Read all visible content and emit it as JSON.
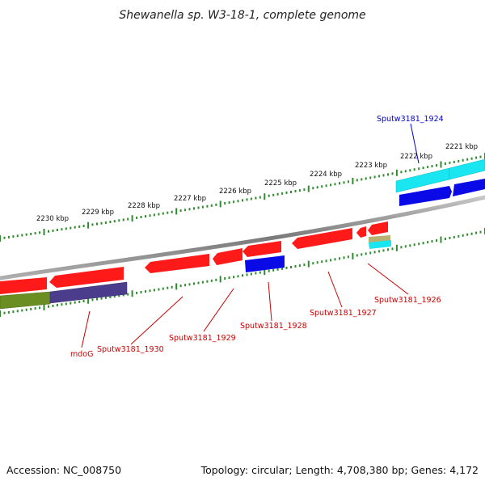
{
  "title": "Shewanella sp. W3-18-1, complete genome",
  "footer": {
    "accession": "Accession: NC_008750",
    "summary": "Topology: circular; Length: 4,708,380 bp; Genes: 4,172"
  },
  "colors": {
    "backbone": "#8a8a8a",
    "ticks": "#2e8b2e",
    "cds_forward": "#ff1a1a",
    "cds_reverse": "#ff1a1a",
    "blue_feature": "#0a0ae6",
    "cyan_feature": "#19e6f0",
    "olive_feature": "#6b8e23",
    "purple_feature": "#4b3c8c",
    "label_red": "#cc0000",
    "label_blue": "#0000cc"
  },
  "ticks": [
    {
      "label": "2230 kbp"
    },
    {
      "label": "2229 kbp"
    },
    {
      "label": "2228 kbp"
    },
    {
      "label": "2227 kbp"
    },
    {
      "label": "2226 kbp"
    },
    {
      "label": "2225 kbp"
    },
    {
      "label": "2224 kbp"
    },
    {
      "label": "2223 kbp"
    },
    {
      "label": "2222 kbp"
    },
    {
      "label": "2221 kbp"
    }
  ],
  "gene_labels": [
    {
      "id": "mdoG",
      "text": "mdoG",
      "color": "label_red"
    },
    {
      "id": "sputw3181-1930",
      "text": "Sputw3181_1930",
      "color": "label_red"
    },
    {
      "id": "sputw3181-1929",
      "text": "Sputw3181_1929",
      "color": "label_red"
    },
    {
      "id": "sputw3181-1928",
      "text": "Sputw3181_1928",
      "color": "label_red"
    },
    {
      "id": "sputw3181-1927",
      "text": "Sputw3181_1927",
      "color": "label_red"
    },
    {
      "id": "sputw3181-1926",
      "text": "Sputw3181_1926",
      "color": "label_red"
    },
    {
      "id": "sputw3181-1924",
      "text": "Sputw3181_1924",
      "color": "label_blue"
    }
  ]
}
